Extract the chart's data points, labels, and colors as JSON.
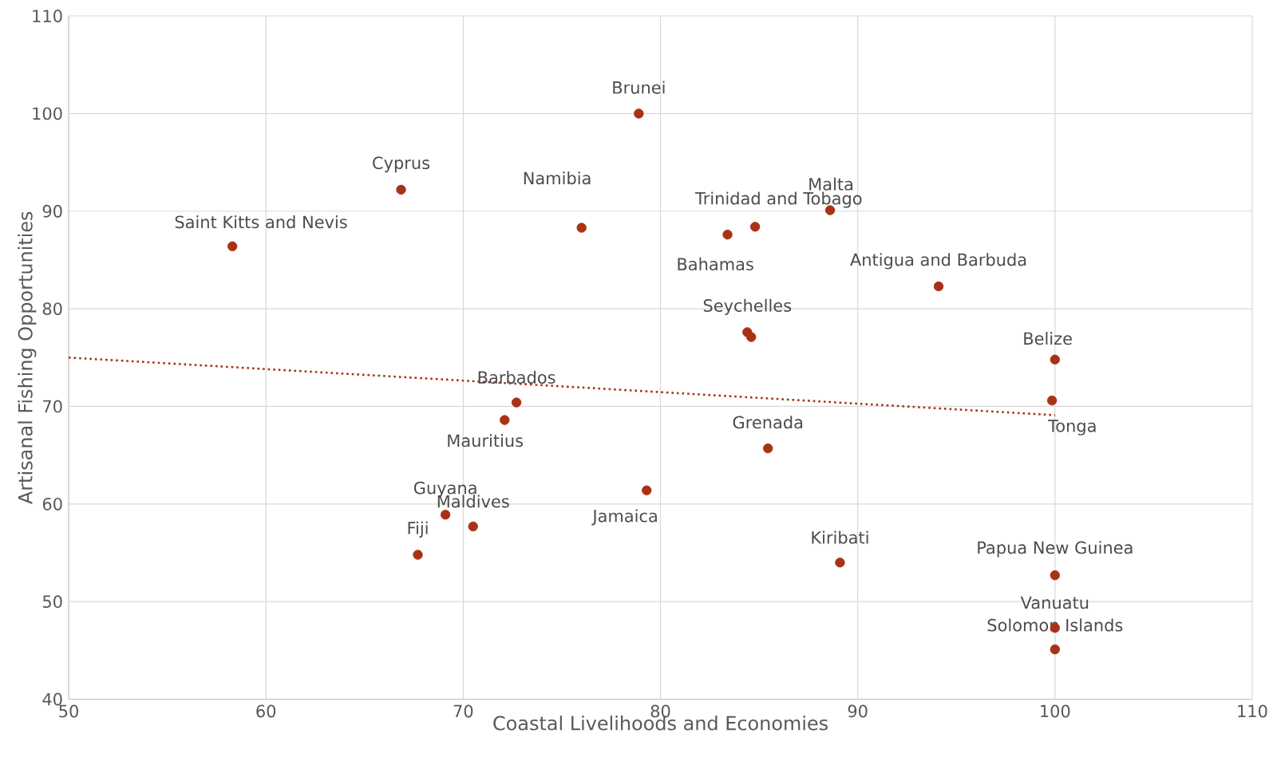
{
  "chart_data": {
    "type": "scatter",
    "xlabel": "Coastal Livelihoods and Economies",
    "ylabel": "Artisanal Fishing Opportunities",
    "xlim": [
      50,
      110
    ],
    "ylim": [
      40,
      110
    ],
    "xticks": [
      50,
      60,
      70,
      80,
      90,
      100,
      110
    ],
    "yticks": [
      40,
      50,
      60,
      70,
      80,
      90,
      100,
      110
    ],
    "grid": true,
    "series": [
      {
        "marker": "circle",
        "color": "#a93216",
        "x": [
          58.3,
          66.85,
          78.9,
          76.0,
          83.4,
          84.8,
          88.6,
          94.1,
          84.4,
          84.6,
          100,
          99.85,
          72.7,
          72.1,
          85.45,
          79.3,
          69.1,
          70.5,
          67.7,
          89.1,
          100,
          100,
          100
        ],
        "values": [
          86.4,
          92.2,
          100,
          88.3,
          87.6,
          88.4,
          90.1,
          82.3,
          77.6,
          77.1,
          74.8,
          70.6,
          70.4,
          68.6,
          65.7,
          61.4,
          58.9,
          57.7,
          54.8,
          54.0,
          52.7,
          47.3,
          45.1
        ]
      },
      {
        "type": "line",
        "color": "#a93216",
        "line_style": "dotted",
        "marker": "none",
        "x": [
          50,
          100
        ],
        "values": [
          75,
          69.1
        ]
      }
    ],
    "annotations": [
      {
        "text": "Saint Kitts and Nevis",
        "x": 58.3,
        "y": 86.4
      },
      {
        "text": "Cyprus",
        "x": 66.85,
        "y": 92.2
      },
      {
        "text": "Brunei",
        "x": 78.9,
        "y": 100
      },
      {
        "text": "Namibia",
        "x": 76.0,
        "y": 88.3
      },
      {
        "text": "Bahamas",
        "x": 83.4,
        "y": 87.6
      },
      {
        "text": "Trinidad and Tobago",
        "x": 84.8,
        "y": 88.4
      },
      {
        "text": "Malta",
        "x": 88.6,
        "y": 90.1
      },
      {
        "text": "Antigua and Barbuda",
        "x": 94.1,
        "y": 82.3
      },
      {
        "text": "Seychelles",
        "x": 84.4,
        "y": 77.6
      },
      {
        "text": "Belize",
        "x": 100,
        "y": 74.8
      },
      {
        "text": "Tonga",
        "x": 99.85,
        "y": 70.6
      },
      {
        "text": "Barbados",
        "x": 72.7,
        "y": 70.4
      },
      {
        "text": "Mauritius",
        "x": 72.1,
        "y": 68.6
      },
      {
        "text": "Grenada",
        "x": 85.45,
        "y": 65.7
      },
      {
        "text": "Jamaica",
        "x": 79.3,
        "y": 61.4
      },
      {
        "text": "Guyana",
        "x": 69.1,
        "y": 58.9
      },
      {
        "text": "Maldives",
        "x": 70.5,
        "y": 57.7
      },
      {
        "text": "Fiji",
        "x": 67.7,
        "y": 54.8
      },
      {
        "text": "Kiribati",
        "x": 89.1,
        "y": 54.0
      },
      {
        "text": "Papua New Guinea",
        "x": 100,
        "y": 52.7
      },
      {
        "text": "Vanuatu",
        "x": 100,
        "y": 47.3
      },
      {
        "text": "Solomon Islands",
        "x": 100,
        "y": 45.1
      }
    ]
  }
}
